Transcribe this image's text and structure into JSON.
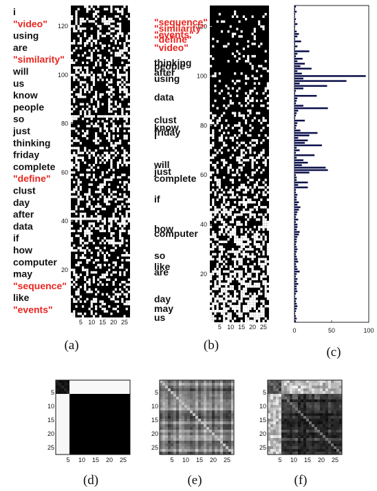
{
  "figure": {
    "captions": [
      "(a)",
      "(b)",
      "(c)",
      "(d)",
      "(e)",
      "(f)"
    ],
    "colors": {
      "highlight": "#e8251f",
      "normal": "#111111",
      "bar": "#0b0f4a",
      "matrix_bg": "#000000"
    }
  },
  "chart_data": [
    {
      "id": "a",
      "type": "heatmap",
      "title": "",
      "xlabel": "",
      "ylabel": "",
      "xticks": [
        5,
        10,
        15,
        20,
        25
      ],
      "yticks": [
        20,
        40,
        60,
        80,
        100,
        120
      ],
      "xlim": [
        1,
        27
      ],
      "ylim": [
        1,
        128
      ],
      "binary": true,
      "row_labels": [
        {
          "text": "i",
          "highlight": false
        },
        {
          "text": "\"video\"",
          "highlight": true
        },
        {
          "text": "using",
          "highlight": false
        },
        {
          "text": "are",
          "highlight": false
        },
        {
          "text": "\"similarity\"",
          "highlight": true
        },
        {
          "text": "will",
          "highlight": false
        },
        {
          "text": "us",
          "highlight": false
        },
        {
          "text": "know",
          "highlight": false
        },
        {
          "text": "people",
          "highlight": false
        },
        {
          "text": "so",
          "highlight": false
        },
        {
          "text": "just",
          "highlight": false
        },
        {
          "text": "thinking",
          "highlight": false
        },
        {
          "text": "friday",
          "highlight": false
        },
        {
          "text": "complete",
          "highlight": false
        },
        {
          "text": "\"define\"",
          "highlight": true
        },
        {
          "text": "clust",
          "highlight": false
        },
        {
          "text": "day",
          "highlight": false
        },
        {
          "text": "after",
          "highlight": false
        },
        {
          "text": "data",
          "highlight": false
        },
        {
          "text": "if",
          "highlight": false
        },
        {
          "text": "how",
          "highlight": false
        },
        {
          "text": "computer",
          "highlight": false
        },
        {
          "text": "may",
          "highlight": false
        },
        {
          "text": "\"sequence\"",
          "highlight": true
        },
        {
          "text": "like",
          "highlight": false
        },
        {
          "text": "\"events\"",
          "highlight": true
        }
      ]
    },
    {
      "id": "b",
      "type": "heatmap",
      "title": "",
      "xlabel": "",
      "ylabel": "",
      "xticks": [
        5,
        10,
        15,
        20,
        25
      ],
      "yticks": [
        20,
        40,
        60,
        80,
        100,
        120
      ],
      "xlim": [
        1,
        27
      ],
      "ylim": [
        1,
        128
      ],
      "binary": true,
      "sorted_by_row_density": true,
      "row_labels": [
        {
          "text": "\"sequence\"",
          "highlight": true
        },
        {
          "text": "\"similarity\"",
          "highlight": true
        },
        {
          "text": "\"events\"",
          "highlight": true
        },
        {
          "text": "\"define\"",
          "highlight": true
        },
        {
          "text": "\"video\"",
          "highlight": true
        },
        {
          "text": "thinking",
          "highlight": false
        },
        {
          "text": "people",
          "highlight": false
        },
        {
          "text": "after",
          "highlight": false
        },
        {
          "text": "using",
          "highlight": false
        },
        {
          "text": "data",
          "highlight": false
        },
        {
          "text": "clust",
          "highlight": false
        },
        {
          "text": "know",
          "highlight": false
        },
        {
          "text": "friday",
          "highlight": false
        },
        {
          "text": "i",
          "highlight": false
        },
        {
          "text": "will",
          "highlight": false
        },
        {
          "text": "just",
          "highlight": false
        },
        {
          "text": "complete",
          "highlight": false
        },
        {
          "text": "if",
          "highlight": false
        },
        {
          "text": "how",
          "highlight": false
        },
        {
          "text": "computer",
          "highlight": false
        },
        {
          "text": "so",
          "highlight": false
        },
        {
          "text": "like",
          "highlight": false
        },
        {
          "text": "are",
          "highlight": false
        },
        {
          "text": "day",
          "highlight": false
        },
        {
          "text": "may",
          "highlight": false
        },
        {
          "text": "us",
          "highlight": false
        }
      ]
    },
    {
      "id": "c",
      "type": "bar",
      "orientation": "horizontal",
      "title": "",
      "xlabel": "",
      "ylabel": "",
      "xticks": [
        0,
        50,
        100
      ],
      "xlim": [
        0,
        100
      ],
      "values": [
        2,
        1,
        3,
        1,
        0,
        2,
        1,
        4,
        1,
        0,
        3,
        6,
        4,
        1,
        9,
        1,
        4,
        1,
        20,
        4,
        2,
        11,
        4,
        14,
        8,
        23,
        4,
        10,
        96,
        12,
        70,
        7,
        44,
        12,
        2,
        1,
        30,
        4,
        3,
        2,
        12,
        45,
        5,
        3,
        2,
        1,
        14,
        4,
        3,
        2,
        8,
        31,
        20,
        5,
        18,
        14,
        37,
        3,
        7,
        2,
        27,
        3,
        12,
        18,
        10,
        42,
        45,
        20,
        2,
        3,
        3,
        18,
        5,
        18,
        2,
        2,
        4,
        3,
        3,
        6,
        4,
        8,
        6,
        4,
        3,
        2,
        5,
        2,
        4,
        4,
        3,
        7,
        6,
        4,
        3,
        3,
        2,
        3,
        4,
        3,
        2,
        3,
        4,
        5,
        2,
        3,
        4,
        7,
        3,
        2,
        4,
        3,
        5,
        3,
        3,
        4,
        2,
        1,
        3,
        2,
        3,
        4,
        3,
        2,
        1,
        2,
        3,
        2
      ]
    },
    {
      "id": "d",
      "type": "heatmap",
      "title": "",
      "xticks": [
        5,
        10,
        15,
        20,
        25
      ],
      "yticks": [
        5,
        10,
        15,
        20,
        25
      ],
      "size": 27,
      "block_split": 5
    },
    {
      "id": "e",
      "type": "heatmap",
      "title": "",
      "xticks": [
        5,
        10,
        15,
        20,
        25
      ],
      "yticks": [
        5,
        10,
        15,
        20,
        25
      ],
      "size": 27
    },
    {
      "id": "f",
      "type": "heatmap",
      "title": "",
      "xticks": [
        5,
        10,
        15,
        20,
        25
      ],
      "yticks": [
        5,
        10,
        15,
        20,
        25
      ],
      "size": 27,
      "block_split": 5
    }
  ]
}
